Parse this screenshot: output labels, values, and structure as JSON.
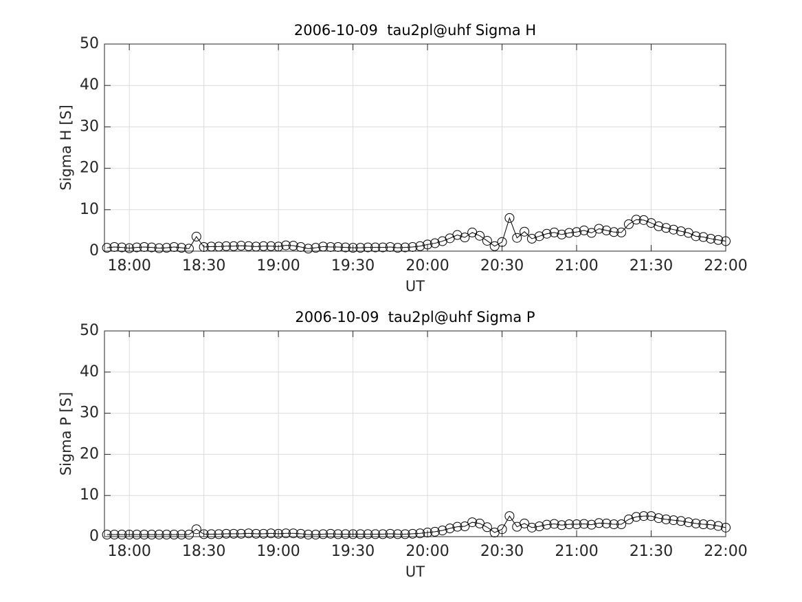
{
  "chart_data": [
    {
      "type": "line",
      "title": "2006-10-09  tau2pl@uhf Sigma H",
      "xlabel": "UT",
      "ylabel": "Sigma H [S]",
      "x": [
        "17:51",
        "17:54",
        "17:57",
        "18:00",
        "18:03",
        "18:06",
        "18:09",
        "18:12",
        "18:15",
        "18:18",
        "18:21",
        "18:24",
        "18:27",
        "18:30",
        "18:33",
        "18:36",
        "18:39",
        "18:42",
        "18:45",
        "18:48",
        "18:51",
        "18:54",
        "18:57",
        "19:00",
        "19:03",
        "19:06",
        "19:09",
        "19:12",
        "19:15",
        "19:18",
        "19:21",
        "19:24",
        "19:27",
        "19:30",
        "19:33",
        "19:36",
        "19:39",
        "19:42",
        "19:45",
        "19:48",
        "19:51",
        "19:54",
        "19:57",
        "20:00",
        "20:03",
        "20:06",
        "20:09",
        "20:12",
        "20:15",
        "20:18",
        "20:21",
        "20:24",
        "20:27",
        "20:30",
        "20:33",
        "20:36",
        "20:39",
        "20:42",
        "20:45",
        "20:48",
        "20:51",
        "20:54",
        "20:57",
        "21:00",
        "21:03",
        "21:06",
        "21:09",
        "21:12",
        "21:15",
        "21:18",
        "21:21",
        "21:24",
        "21:27",
        "21:30",
        "21:33",
        "21:36",
        "21:39",
        "21:42",
        "21:45",
        "21:48",
        "21:51",
        "21:54",
        "21:57",
        "22:00"
      ],
      "values": [
        0.8,
        1.0,
        0.9,
        0.7,
        0.9,
        1.0,
        0.9,
        0.7,
        0.8,
        1.0,
        0.8,
        0.6,
        3.5,
        1.0,
        1.1,
        1.1,
        1.2,
        1.2,
        1.3,
        1.2,
        1.1,
        1.2,
        1.2,
        1.1,
        1.4,
        1.3,
        1.0,
        0.6,
        0.8,
        1.1,
        1.0,
        1.0,
        0.9,
        0.8,
        0.8,
        0.9,
        0.9,
        0.9,
        1.0,
        0.8,
        0.9,
        1.0,
        1.2,
        1.6,
        1.9,
        2.4,
        3.1,
        3.9,
        3.3,
        4.5,
        3.7,
        2.5,
        1.2,
        2.2,
        8.0,
        3.2,
        4.7,
        3.0,
        3.6,
        4.2,
        4.5,
        4.0,
        4.4,
        4.6,
        5.0,
        4.4,
        5.4,
        5.0,
        4.6,
        4.5,
        6.5,
        7.6,
        7.5,
        6.8,
        6.0,
        5.6,
        5.2,
        4.8,
        4.4,
        3.6,
        3.4,
        3.0,
        2.7,
        2.4
      ],
      "color": "#000000",
      "marker": "circle",
      "xlim": [
        "17:50",
        "22:00"
      ],
      "xticks": [
        "18:00",
        "18:30",
        "19:00",
        "19:30",
        "20:00",
        "20:30",
        "21:00",
        "21:30",
        "22:00"
      ],
      "ylim": [
        0,
        50
      ],
      "yticks": [
        0,
        10,
        20,
        30,
        40,
        50
      ],
      "grid": true
    },
    {
      "type": "line",
      "title": "2006-10-09  tau2pl@uhf Sigma P",
      "xlabel": "UT",
      "ylabel": "Sigma P [S]",
      "x": [
        "17:51",
        "17:54",
        "17:57",
        "18:00",
        "18:03",
        "18:06",
        "18:09",
        "18:12",
        "18:15",
        "18:18",
        "18:21",
        "18:24",
        "18:27",
        "18:30",
        "18:33",
        "18:36",
        "18:39",
        "18:42",
        "18:45",
        "18:48",
        "18:51",
        "18:54",
        "18:57",
        "19:00",
        "19:03",
        "19:06",
        "19:09",
        "19:12",
        "19:15",
        "19:18",
        "19:21",
        "19:24",
        "19:27",
        "19:30",
        "19:33",
        "19:36",
        "19:39",
        "19:42",
        "19:45",
        "19:48",
        "19:51",
        "19:54",
        "19:57",
        "20:00",
        "20:03",
        "20:06",
        "20:09",
        "20:12",
        "20:15",
        "20:18",
        "20:21",
        "20:24",
        "20:27",
        "20:30",
        "20:33",
        "20:36",
        "20:39",
        "20:42",
        "20:45",
        "20:48",
        "20:51",
        "20:54",
        "20:57",
        "21:00",
        "21:03",
        "21:06",
        "21:09",
        "21:12",
        "21:15",
        "21:18",
        "21:21",
        "21:24",
        "21:27",
        "21:30",
        "21:33",
        "21:36",
        "21:39",
        "21:42",
        "21:45",
        "21:48",
        "21:51",
        "21:54",
        "21:57",
        "22:00"
      ],
      "values": [
        0.5,
        0.5,
        0.5,
        0.5,
        0.5,
        0.5,
        0.5,
        0.5,
        0.5,
        0.5,
        0.5,
        0.5,
        1.8,
        0.6,
        0.6,
        0.6,
        0.7,
        0.7,
        0.7,
        0.8,
        0.7,
        0.7,
        0.8,
        0.7,
        0.8,
        0.8,
        0.7,
        0.5,
        0.5,
        0.6,
        0.7,
        0.6,
        0.6,
        0.6,
        0.6,
        0.6,
        0.6,
        0.6,
        0.7,
        0.6,
        0.6,
        0.7,
        0.8,
        1.0,
        1.2,
        1.5,
        2.0,
        2.4,
        2.5,
        3.5,
        3.2,
        2.3,
        1.0,
        1.8,
        5.0,
        2.4,
        3.2,
        2.2,
        2.5,
        2.9,
        3.1,
        2.8,
        3.0,
        3.0,
        3.1,
        2.9,
        3.3,
        3.2,
        3.0,
        3.0,
        4.2,
        4.8,
        5.0,
        5.0,
        4.5,
        4.2,
        4.0,
        3.8,
        3.5,
        3.2,
        3.0,
        2.9,
        2.6,
        2.2
      ],
      "color": "#000000",
      "marker": "circle",
      "xlim": [
        "17:50",
        "22:00"
      ],
      "xticks": [
        "18:00",
        "18:30",
        "19:00",
        "19:30",
        "20:00",
        "20:30",
        "21:00",
        "21:30",
        "22:00"
      ],
      "ylim": [
        0,
        50
      ],
      "yticks": [
        0,
        10,
        20,
        30,
        40,
        50
      ],
      "grid": true
    }
  ]
}
